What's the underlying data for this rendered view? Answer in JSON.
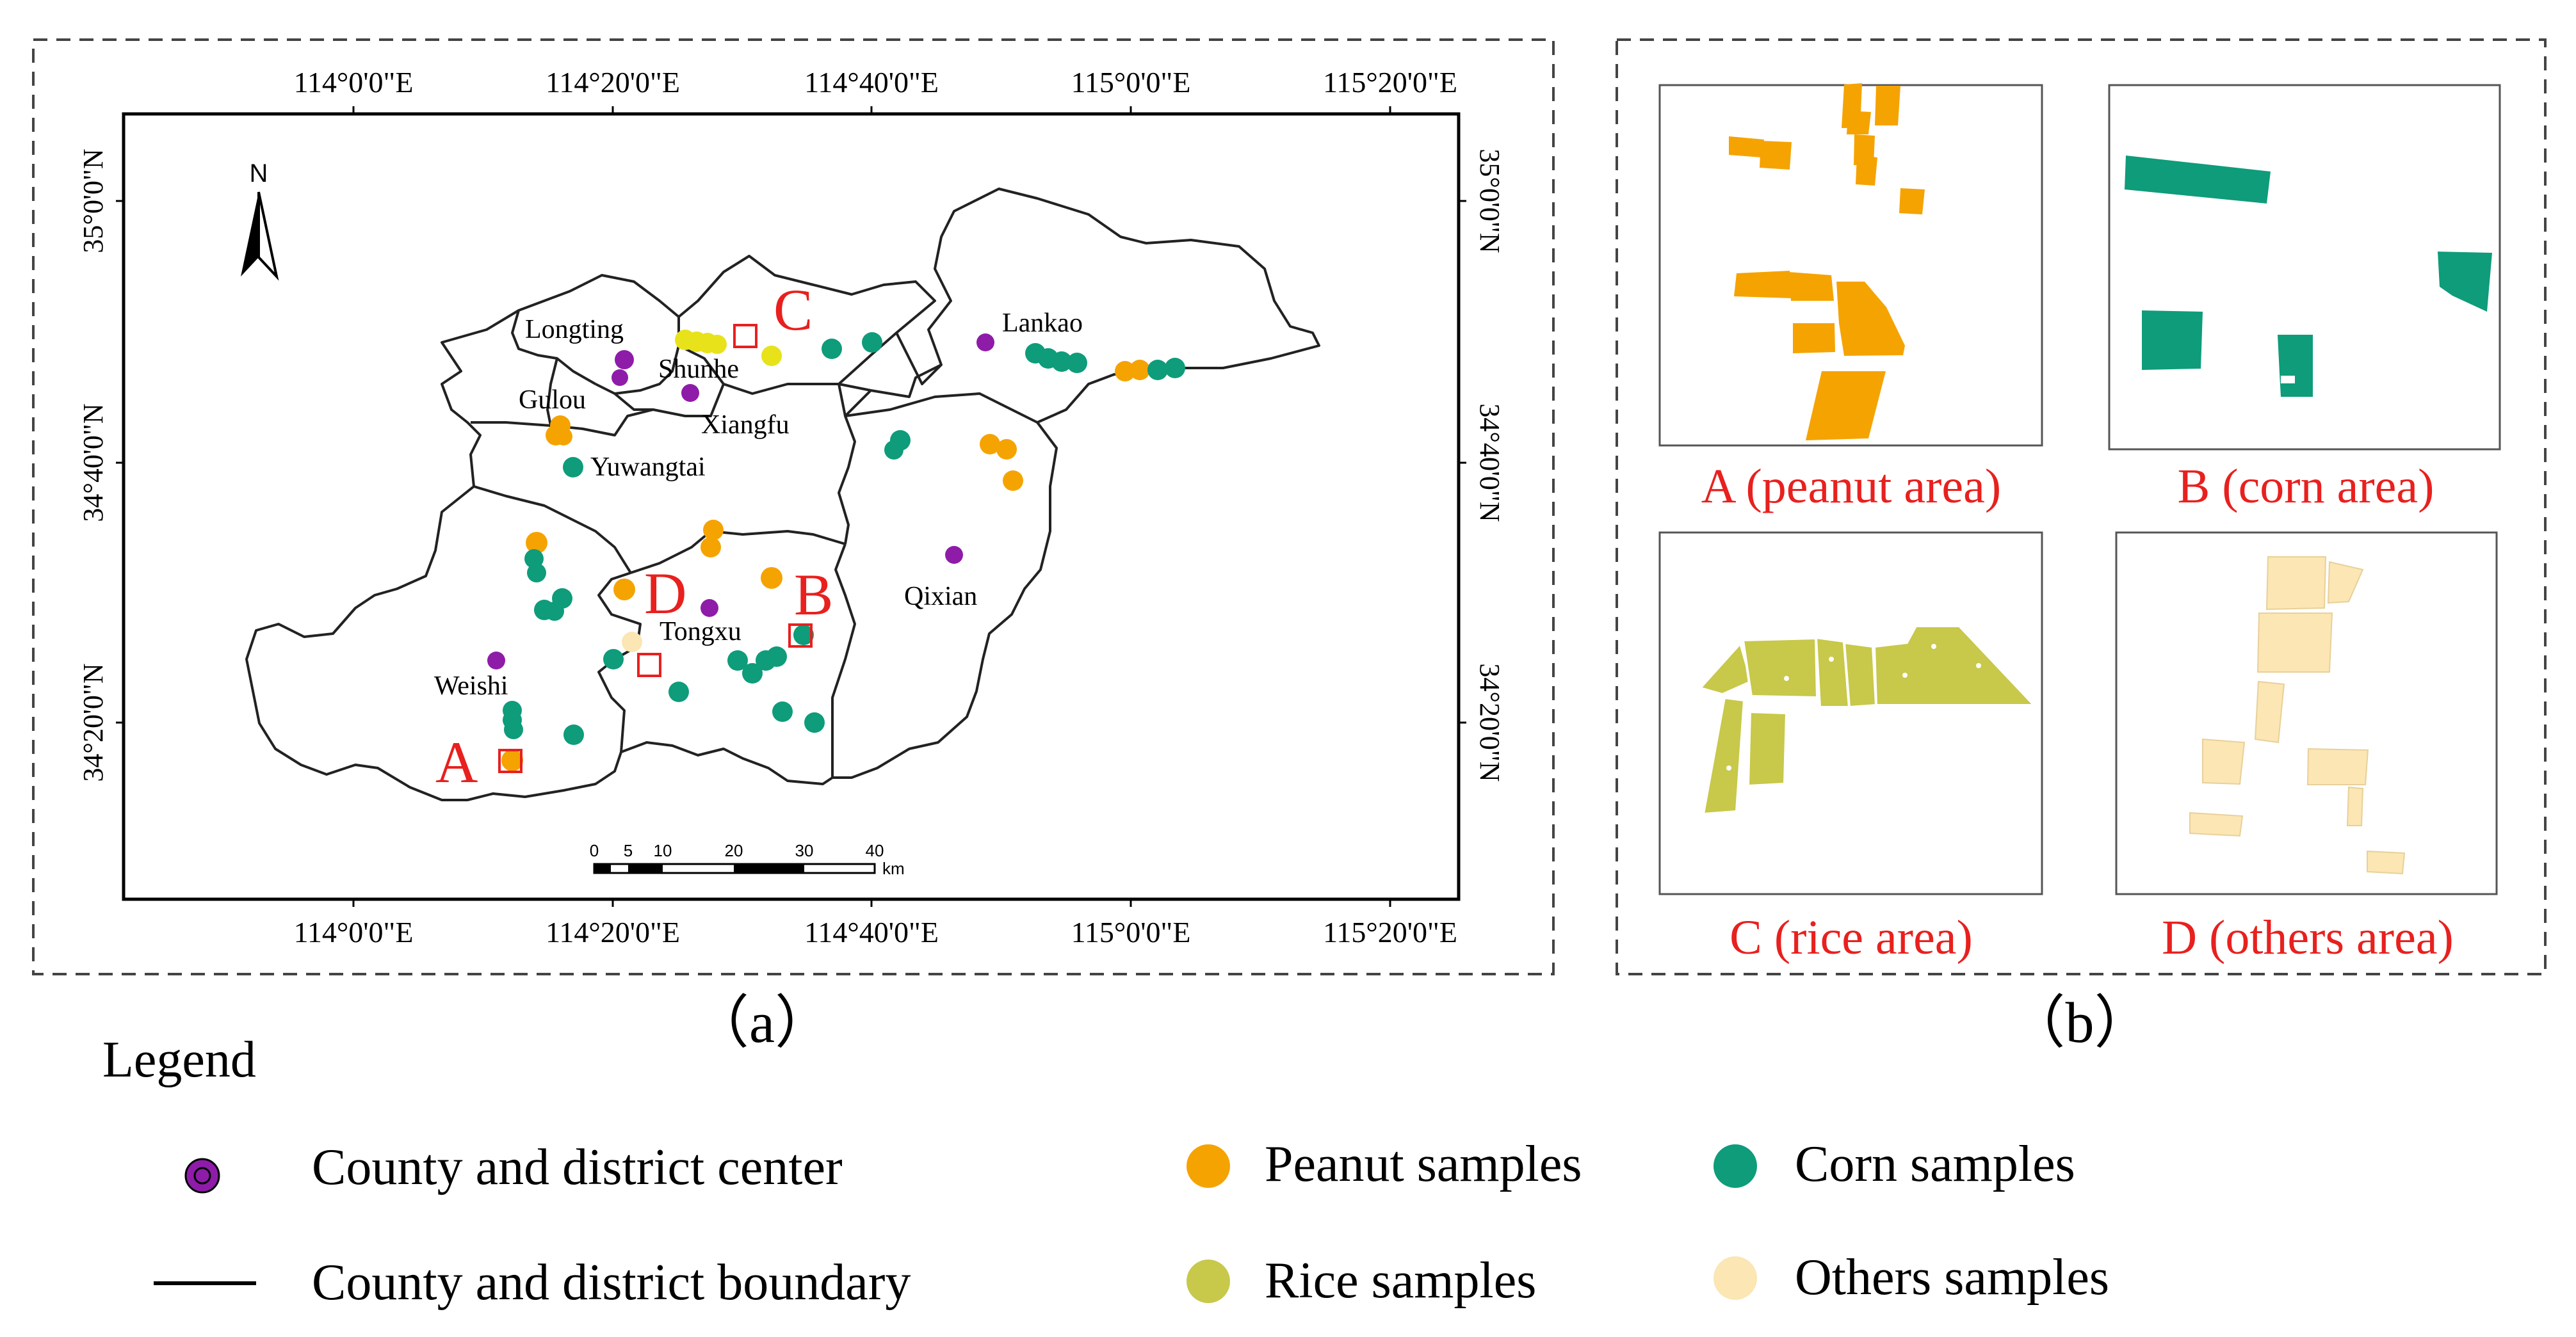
{
  "panel_a": {
    "label": "（a）",
    "top_ticks": [
      "114°0'0\"E",
      "114°20'0\"E",
      "114°40'0\"E",
      "115°0'0\"E",
      "115°20'0\"E"
    ],
    "bottom_ticks": [
      "114°0'0\"E",
      "114°20'0\"E",
      "114°40'0\"E",
      "115°0'0\"E",
      "115°20'0\"E"
    ],
    "left_ticks": [
      "35°0'0\"N",
      "34°40'0\"N",
      "34°20'0\"N"
    ],
    "right_ticks": [
      "35°0'0\"N",
      "34°40'0\"N",
      "34°20'0\"N"
    ],
    "north_letter": "N",
    "scale_bar": {
      "labels": [
        "0",
        "5",
        "10",
        "20",
        "30",
        "40"
      ],
      "unit": "km"
    },
    "place_names": [
      "Longting",
      "Shunhe",
      "Gulou",
      "Xiangfu",
      "Yuwangtai",
      "Lankao",
      "Qixian",
      "Tongxu",
      "Weishi"
    ],
    "area_letters": [
      "A",
      "B",
      "C",
      "D"
    ]
  },
  "panel_b": {
    "label": "（b）",
    "captions": [
      "A (peanut area)",
      "B (corn area)",
      "C (rice area)",
      "D (others area)"
    ]
  },
  "legend": {
    "title": "Legend",
    "items": [
      "County and district center",
      "County and district boundary",
      "Peanut samples",
      "Corn samples",
      "Rice samples",
      "Others samples"
    ]
  },
  "colors": {
    "peanut": "#F5A300",
    "corn": "#0E9C7A",
    "rice": "#C8C84A",
    "others": "#FBE6B4",
    "center": "#8E1CA8",
    "highlight": "#E8201E",
    "boundary": "#000000"
  }
}
